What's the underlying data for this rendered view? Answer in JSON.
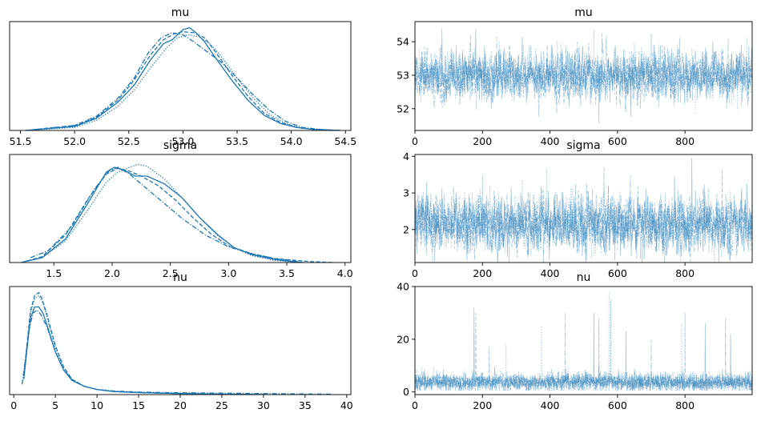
{
  "chart_data": [
    {
      "type": "line",
      "panel": "density",
      "title": "mu",
      "xlim": [
        51.4,
        54.55
      ],
      "ylim": [
        0,
        1.08
      ],
      "xticks": [
        51.5,
        52.0,
        52.5,
        53.0,
        53.5,
        54.0,
        54.5
      ],
      "xtick_labels": [
        "51.5",
        "52.0",
        "52.5",
        "53.0",
        "53.5",
        "54.0",
        "54.5"
      ],
      "yticks_visible": false,
      "color": "#1f77b4",
      "series": [
        {
          "line_style": "solid",
          "x": [
            51.55,
            52.0,
            52.2,
            52.4,
            52.55,
            52.7,
            52.82,
            52.9,
            53.0,
            53.06,
            53.12,
            53.2,
            53.3,
            53.45,
            53.6,
            53.75,
            53.9,
            54.05,
            54.2,
            54.45
          ],
          "y": [
            0.0,
            0.04,
            0.12,
            0.28,
            0.45,
            0.7,
            0.86,
            0.9,
            1.0,
            1.02,
            0.97,
            0.88,
            0.72,
            0.5,
            0.3,
            0.15,
            0.07,
            0.03,
            0.01,
            0.0
          ]
        },
        {
          "line_style": "dashed",
          "x": [
            51.55,
            52.0,
            52.2,
            52.4,
            52.55,
            52.7,
            52.82,
            52.92,
            53.0,
            53.1,
            53.2,
            53.3,
            53.45,
            53.6,
            53.75,
            53.9,
            54.05,
            54.2,
            54.45
          ],
          "y": [
            0.0,
            0.05,
            0.13,
            0.3,
            0.5,
            0.75,
            0.9,
            0.96,
            0.98,
            0.97,
            0.92,
            0.78,
            0.55,
            0.34,
            0.17,
            0.08,
            0.03,
            0.01,
            0.0
          ]
        },
        {
          "line_style": "dotted",
          "x": [
            51.55,
            52.0,
            52.2,
            52.4,
            52.55,
            52.7,
            52.85,
            52.95,
            53.05,
            53.15,
            53.25,
            53.35,
            53.5,
            53.65,
            53.8,
            53.95,
            54.1,
            54.3,
            54.45
          ],
          "y": [
            0.0,
            0.03,
            0.1,
            0.24,
            0.4,
            0.62,
            0.82,
            0.92,
            0.95,
            0.93,
            0.86,
            0.74,
            0.52,
            0.32,
            0.16,
            0.07,
            0.02,
            0.005,
            0.0
          ]
        },
        {
          "line_style": "dashdot",
          "x": [
            51.55,
            52.0,
            52.2,
            52.4,
            52.55,
            52.68,
            52.8,
            52.9,
            53.0,
            53.1,
            53.2,
            53.35,
            53.5,
            53.65,
            53.8,
            53.95,
            54.1,
            54.3,
            54.45
          ],
          "y": [
            0.0,
            0.05,
            0.14,
            0.32,
            0.52,
            0.77,
            0.92,
            0.97,
            0.95,
            0.88,
            0.8,
            0.68,
            0.52,
            0.35,
            0.2,
            0.09,
            0.03,
            0.008,
            0.0
          ]
        }
      ]
    },
    {
      "type": "line",
      "panel": "trace",
      "title": "mu",
      "xlim": [
        0,
        999
      ],
      "ylim": [
        51.35,
        54.6
      ],
      "xticks": [
        0,
        200,
        400,
        600,
        800
      ],
      "xtick_labels": [
        "0",
        "200",
        "400",
        "600",
        "800"
      ],
      "yticks": [
        52,
        53,
        54
      ],
      "ytick_labels": [
        "52",
        "53",
        "54"
      ],
      "color": "#1f77b4",
      "draws": 1000,
      "chains": 4,
      "center": 53.0,
      "spread": 0.33,
      "spikes": [
        [
          80,
          54.4
        ],
        [
          165,
          54.2
        ],
        [
          530,
          54.35
        ],
        [
          545,
          51.55
        ],
        [
          640,
          51.75
        ],
        [
          700,
          54.25
        ],
        [
          830,
          51.85
        ]
      ]
    },
    {
      "type": "line",
      "panel": "density",
      "title": "sigma",
      "xlim": [
        1.12,
        4.05
      ],
      "ylim": [
        0,
        1.1
      ],
      "xticks": [
        1.5,
        2.0,
        2.5,
        3.0,
        3.5,
        4.0
      ],
      "xtick_labels": [
        "1.5",
        "2.0",
        "2.5",
        "3.0",
        "3.5",
        "4.0"
      ],
      "yticks_visible": false,
      "color": "#1f77b4",
      "series": [
        {
          "line_style": "solid",
          "x": [
            1.22,
            1.4,
            1.6,
            1.8,
            1.95,
            2.02,
            2.1,
            2.2,
            2.3,
            2.45,
            2.6,
            2.75,
            2.9,
            3.05,
            3.2,
            3.4,
            3.55,
            3.65
          ],
          "y": [
            0.0,
            0.05,
            0.24,
            0.62,
            0.92,
            0.97,
            0.94,
            0.88,
            0.88,
            0.8,
            0.66,
            0.46,
            0.29,
            0.15,
            0.08,
            0.03,
            0.01,
            0.0
          ]
        },
        {
          "line_style": "dashed",
          "x": [
            1.22,
            1.4,
            1.6,
            1.8,
            1.95,
            2.05,
            2.15,
            2.25,
            2.4,
            2.55,
            2.7,
            2.85,
            3.0,
            3.2,
            3.4,
            3.7,
            3.9
          ],
          "y": [
            0.0,
            0.06,
            0.28,
            0.66,
            0.9,
            0.96,
            0.93,
            0.88,
            0.78,
            0.63,
            0.45,
            0.29,
            0.17,
            0.09,
            0.04,
            0.01,
            0.0
          ]
        },
        {
          "line_style": "dotted",
          "x": [
            1.22,
            1.4,
            1.6,
            1.8,
            1.95,
            2.05,
            2.15,
            2.22,
            2.3,
            2.45,
            2.6,
            2.75,
            2.9,
            3.05,
            3.2,
            3.4,
            3.6
          ],
          "y": [
            0.0,
            0.05,
            0.22,
            0.55,
            0.82,
            0.92,
            0.97,
            1.0,
            0.98,
            0.85,
            0.66,
            0.46,
            0.28,
            0.15,
            0.07,
            0.02,
            0.0
          ]
        },
        {
          "line_style": "dashdot",
          "x": [
            1.3,
            1.45,
            1.65,
            1.85,
            1.97,
            2.05,
            2.15,
            2.3,
            2.45,
            2.6,
            2.8,
            3.0,
            3.2,
            3.4,
            3.6
          ],
          "y": [
            0.05,
            0.12,
            0.36,
            0.75,
            0.93,
            0.97,
            0.9,
            0.75,
            0.6,
            0.45,
            0.28,
            0.16,
            0.09,
            0.04,
            0.01
          ]
        }
      ]
    },
    {
      "type": "line",
      "panel": "trace",
      "title": "sigma",
      "xlim": [
        0,
        999
      ],
      "ylim": [
        1.1,
        4.05
      ],
      "xticks": [
        0,
        200,
        400,
        600,
        800
      ],
      "xtick_labels": [
        "0",
        "200",
        "400",
        "600",
        "800"
      ],
      "yticks": [
        2,
        3,
        4
      ],
      "ytick_labels": [
        "2",
        "3",
        "4"
      ],
      "color": "#1f77b4",
      "draws": 1000,
      "chains": 4,
      "center": 2.15,
      "spread": 0.35,
      "spikes": [
        [
          35,
          3.3
        ],
        [
          200,
          3.5
        ],
        [
          390,
          3.65
        ],
        [
          560,
          3.7
        ],
        [
          820,
          3.95
        ],
        [
          910,
          3.65
        ],
        [
          380,
          1.25
        ]
      ]
    },
    {
      "type": "line",
      "panel": "density",
      "title": "nu",
      "xlim": [
        -0.5,
        40.5
      ],
      "ylim": [
        0,
        1.06
      ],
      "xticks": [
        0,
        5,
        10,
        15,
        20,
        25,
        30,
        35,
        40
      ],
      "xtick_labels": [
        "0",
        "5",
        "10",
        "15",
        "20",
        "25",
        "30",
        "35",
        "40"
      ],
      "yticks_visible": false,
      "color": "#1f77b4",
      "series": [
        {
          "line_style": "solid",
          "x": [
            1.2,
            1.6,
            2.0,
            2.5,
            3.0,
            3.5,
            4.0,
            5.0,
            6.0,
            7.0,
            8.5,
            10,
            12,
            15,
            20,
            25,
            30
          ],
          "y": [
            0.15,
            0.45,
            0.75,
            0.86,
            0.86,
            0.8,
            0.68,
            0.42,
            0.24,
            0.14,
            0.08,
            0.05,
            0.03,
            0.02,
            0.01,
            0.005,
            0.0
          ]
        },
        {
          "line_style": "dashed",
          "x": [
            1.2,
            1.6,
            2.0,
            2.5,
            3.0,
            3.4,
            4.0,
            5.0,
            6.0,
            7.0,
            8.5,
            10,
            12,
            15,
            20,
            25,
            30
          ],
          "y": [
            0.18,
            0.5,
            0.82,
            0.97,
            1.0,
            0.94,
            0.78,
            0.48,
            0.27,
            0.15,
            0.08,
            0.05,
            0.03,
            0.02,
            0.01,
            0.005,
            0.0
          ]
        },
        {
          "line_style": "dotted",
          "x": [
            1.2,
            1.6,
            2.0,
            2.5,
            3.0,
            3.5,
            4.0,
            5.0,
            6.0,
            7.0,
            8.5,
            10,
            12,
            15,
            20,
            25,
            30
          ],
          "y": [
            0.16,
            0.48,
            0.8,
            0.94,
            0.97,
            0.9,
            0.75,
            0.46,
            0.26,
            0.15,
            0.08,
            0.05,
            0.03,
            0.02,
            0.01,
            0.005,
            0.0
          ]
        },
        {
          "line_style": "dashdot",
          "x": [
            1.0,
            1.4,
            1.8,
            2.3,
            2.8,
            3.3,
            4.0,
            5.0,
            6.0,
            7.0,
            8.5,
            10,
            12,
            15,
            20,
            25,
            30,
            35,
            38.2
          ],
          "y": [
            0.1,
            0.35,
            0.62,
            0.8,
            0.83,
            0.78,
            0.66,
            0.42,
            0.24,
            0.14,
            0.08,
            0.05,
            0.035,
            0.025,
            0.018,
            0.014,
            0.01,
            0.006,
            0.004
          ]
        }
      ]
    },
    {
      "type": "line",
      "panel": "trace",
      "title": "nu",
      "xlim": [
        0,
        999
      ],
      "ylim": [
        -1,
        40
      ],
      "xticks": [
        0,
        200,
        400,
        600,
        800
      ],
      "xtick_labels": [
        "0",
        "200",
        "400",
        "600",
        "800"
      ],
      "yticks": [
        0,
        20,
        40
      ],
      "ytick_labels": [
        "0",
        "20",
        "40"
      ],
      "color": "#1f77b4",
      "draws": 1000,
      "chains": 4,
      "center": 4.0,
      "spread": 1.6,
      "spikes": [
        [
          175,
          32
        ],
        [
          180,
          30
        ],
        [
          375,
          25
        ],
        [
          445,
          30
        ],
        [
          530,
          30
        ],
        [
          545,
          28
        ],
        [
          575,
          38
        ],
        [
          580,
          35
        ],
        [
          625,
          23
        ],
        [
          800,
          30
        ],
        [
          790,
          26
        ],
        [
          920,
          28
        ],
        [
          935,
          22
        ],
        [
          220,
          17
        ],
        [
          270,
          18
        ],
        [
          700,
          20
        ],
        [
          860,
          26
        ]
      ]
    }
  ]
}
